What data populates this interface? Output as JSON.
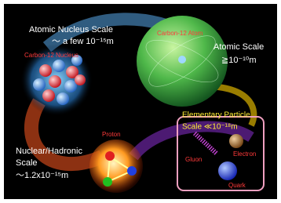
{
  "labels": {
    "nucleus_title": "Atomic Nucleus Scale",
    "nucleus_size": "～ a few 10⁻¹⁵m",
    "nucleus_name": "Carbon-12 Nucleus",
    "atom_name": "Carbon-12 Atom",
    "atom_title": "Atomic Scale",
    "atom_size": "≧10⁻¹⁰m",
    "particle_title": "Elementary Particle",
    "particle_size": "Scale ≪10⁻¹⁸m",
    "gluon": "Gluon",
    "electron": "Electron",
    "quark": "Quark",
    "proton": "Proton",
    "hadron_title_1": "Nuclear/Hadronic",
    "hadron_title_2": "Scale",
    "hadron_size": "～1.2x10⁻¹⁵m"
  }
}
